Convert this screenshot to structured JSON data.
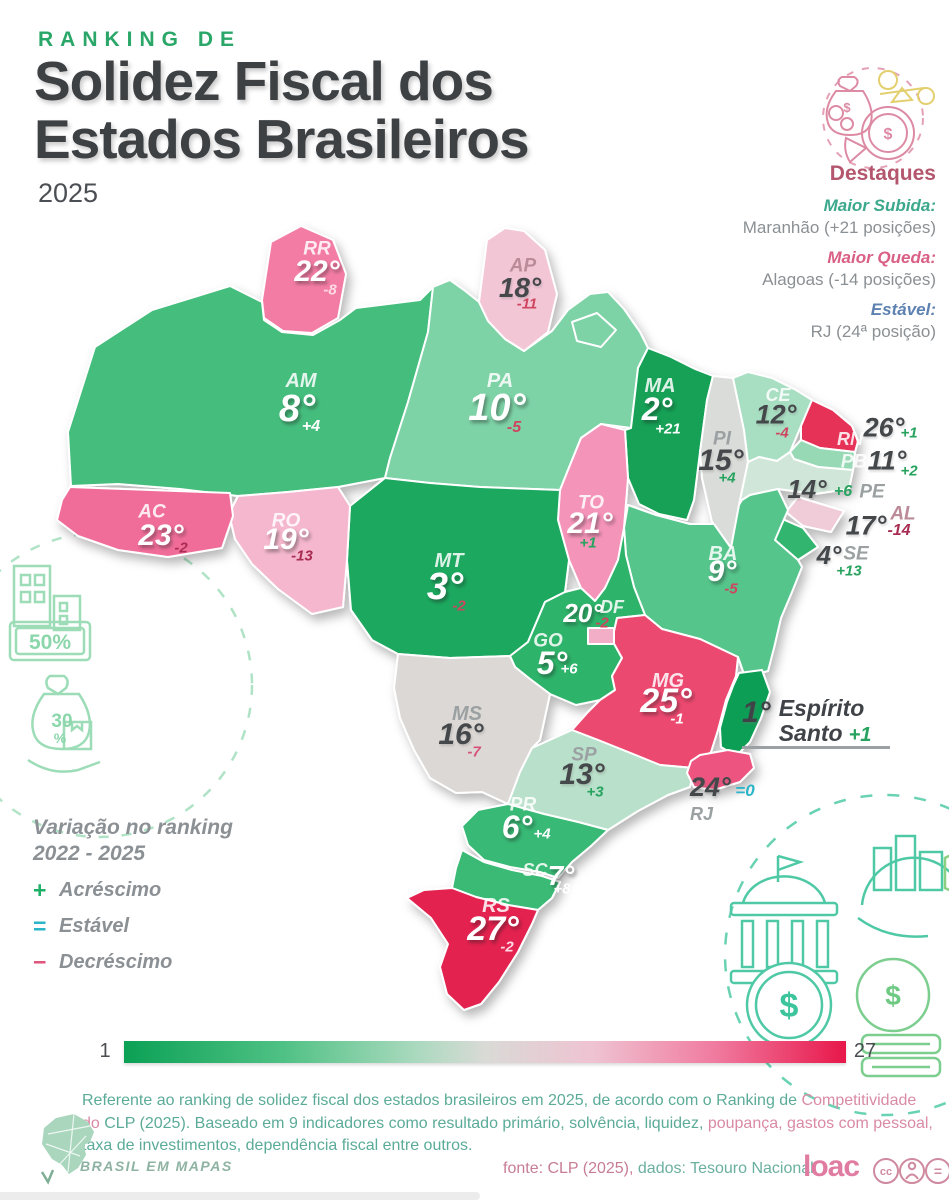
{
  "header": {
    "kicker": "RANKING DE",
    "title_line1": "Solidez Fiscal dos",
    "title_line2": "Estados Brasileiros",
    "year": "2025"
  },
  "destaques": {
    "title": "Destaques",
    "items": [
      {
        "label": "Maior Subida:",
        "value": "Maranhão (+21 posições)",
        "color": "#3ba88c"
      },
      {
        "label": "Maior Queda:",
        "value": "Alagoas (-14 posições)",
        "color": "#d95f85"
      },
      {
        "label": "Estável:",
        "value": "RJ (24ª posição)",
        "color": "#5d81b1"
      }
    ]
  },
  "legend": {
    "title_line1": "Variação no ranking",
    "title_line2": "2022 - 2025",
    "items": [
      {
        "symbol": "+",
        "label": "Acréscimo",
        "color": "#1fb068"
      },
      {
        "symbol": "=",
        "label": "Estável",
        "color": "#2ab5c8"
      },
      {
        "symbol": "−",
        "label": "Decréscimo",
        "color": "#e0557c"
      }
    ]
  },
  "scale": {
    "min": "1",
    "max": "27"
  },
  "map": {
    "states": [
      {
        "code": "AC",
        "rank": "23°",
        "delta": "-2",
        "fill": "#f06d9a"
      },
      {
        "code": "AL",
        "rank": "17°",
        "delta": "-14",
        "fill": "#f0ccd8"
      },
      {
        "code": "AM",
        "rank": "8°",
        "delta": "+4",
        "fill": "#45bd7d"
      },
      {
        "code": "AP",
        "rank": "18°",
        "delta": "-11",
        "fill": "#f3c6d6"
      },
      {
        "code": "BA",
        "rank": "9°",
        "delta": "-5",
        "fill": "#55c58b"
      },
      {
        "code": "CE",
        "rank": "12°",
        "delta": "-4",
        "fill": "#a8dfc2"
      },
      {
        "code": "DF",
        "rank": "20°",
        "delta": "-2",
        "fill": "#f2aec6"
      },
      {
        "code": "ES",
        "rank": "1°",
        "delta": "+1",
        "fill": "#0f9e54"
      },
      {
        "code": "GO",
        "rank": "5°",
        "delta": "+6",
        "fill": "#2fb36b"
      },
      {
        "code": "MA",
        "rank": "2°",
        "delta": "+21",
        "fill": "#12a156"
      },
      {
        "code": "MG",
        "rank": "25°",
        "delta": "-1",
        "fill": "#ec4a70"
      },
      {
        "code": "MS",
        "rank": "16°",
        "delta": "-7",
        "fill": "#dcd8d5"
      },
      {
        "code": "MT",
        "rank": "3°",
        "delta": "-2",
        "fill": "#1aa85e"
      },
      {
        "code": "PA",
        "rank": "10°",
        "delta": "-5",
        "fill": "#7dd2a6"
      },
      {
        "code": "PB",
        "rank": "11°",
        "delta": "+2",
        "fill": "#97d9b5"
      },
      {
        "code": "PE",
        "rank": "14°",
        "delta": "+6",
        "fill": "#cfe6d8"
      },
      {
        "code": "PI",
        "rank": "15°",
        "delta": "+4",
        "fill": "#dadcd9"
      },
      {
        "code": "PR",
        "rank": "6°",
        "delta": "+4",
        "fill": "#38b974"
      },
      {
        "code": "RJ",
        "rank": "24°",
        "delta": "=0",
        "fill": "#ed5480"
      },
      {
        "code": "RN",
        "rank": "26°",
        "delta": "+1",
        "fill": "#e73158"
      },
      {
        "code": "RO",
        "rank": "19°",
        "delta": "-13",
        "fill": "#f5b7cd"
      },
      {
        "code": "RR",
        "rank": "22°",
        "delta": "-8",
        "fill": "#f37ba4"
      },
      {
        "code": "RS",
        "rank": "27°",
        "delta": "-2",
        "fill": "#e32450"
      },
      {
        "code": "SC",
        "rank": "7°",
        "delta": "+8",
        "fill": "#3aba76"
      },
      {
        "code": "SE",
        "rank": "4°",
        "delta": "+13",
        "fill": "#33b56e"
      },
      {
        "code": "SP",
        "rank": "13°",
        "delta": "+3",
        "fill": "#b9e0ca"
      },
      {
        "code": "TO",
        "rank": "21°",
        "delta": "+1",
        "fill": "#f494b9"
      }
    ]
  },
  "es_callout": {
    "name_line1": "Espírito",
    "name_line2": "Santo"
  },
  "footer": {
    "note_segments": [
      {
        "text": "Referente ao ranking de solidez fiscal dos estados brasileiros em 2025, de acordo com o Ranking de ",
        "tone": "teal"
      },
      {
        "text": "Competitividade do ",
        "tone": "pink"
      },
      {
        "text": "CLP (2025). Baseado em 9 indicadores como resultado primário, solvência, liquidez, ",
        "tone": "teal"
      },
      {
        "text": "poupança, gastos com pessoal, ",
        "tone": "pink"
      },
      {
        "text": "taxa de investimentos, dependência fiscal entre outros.",
        "tone": "teal"
      }
    ],
    "source_prefix": "fonte: CLP (2025),",
    "source_suffix": " dados: Tesouro Nacional",
    "brand": "BRASIL EM MAPAS",
    "loac_logo": "loac"
  },
  "deco": {
    "left_percent_1": "50%",
    "left_percent_2": "30",
    "left_percent_2b": "%",
    "dollar": "$",
    "cc": "cc",
    "equals": "="
  }
}
